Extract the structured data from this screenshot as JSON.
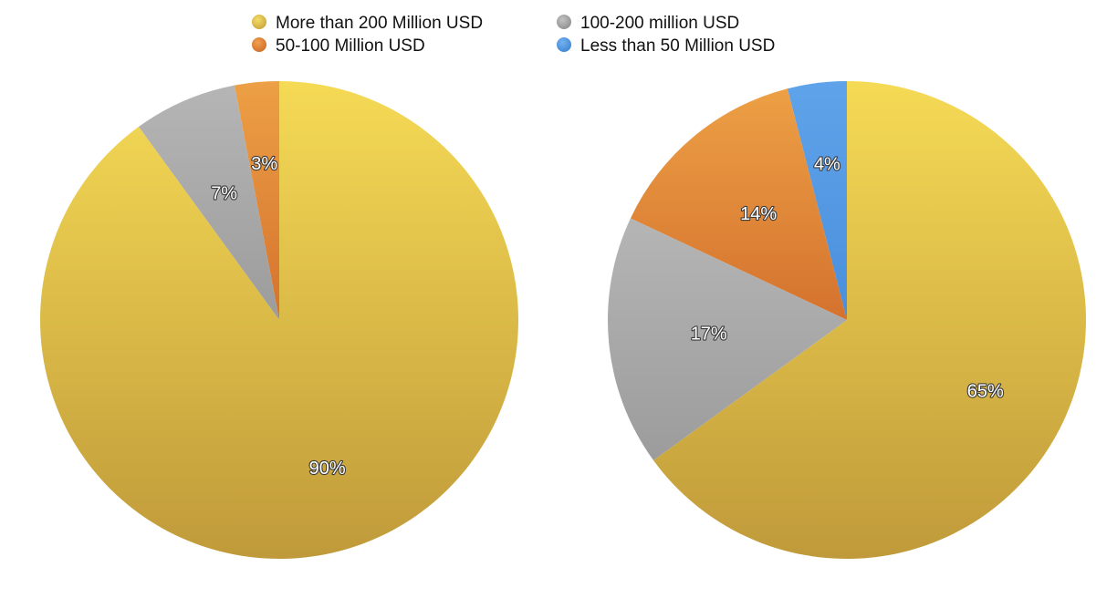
{
  "chart_data": {
    "type": "pie",
    "legend": {
      "placement": "top",
      "entries": [
        {
          "label": "More than 200 Million USD",
          "color": "#e3c54a"
        },
        {
          "label": "100-200 million USD",
          "color": "#a6a6a6"
        },
        {
          "label": "50-100 Million USD",
          "color": "#e08a3a"
        },
        {
          "label": "Less than 50 Million USD",
          "color": "#4f97e2"
        }
      ]
    },
    "pies": [
      {
        "slices": [
          {
            "category": "More than 200 Million USD",
            "value": 90,
            "label": "90%"
          },
          {
            "category": "100-200 million USD",
            "value": 7,
            "label": "7%"
          },
          {
            "category": "50-100 Million USD",
            "value": 3,
            "label": "3%"
          }
        ]
      },
      {
        "slices": [
          {
            "category": "More than 200 Million USD",
            "value": 65,
            "label": "65%"
          },
          {
            "category": "100-200 million USD",
            "value": 17,
            "label": "17%"
          },
          {
            "category": "50-100 Million USD",
            "value": 14,
            "label": "14%"
          },
          {
            "category": "Less than 50 Million USD",
            "value": 4,
            "label": "4%"
          }
        ]
      }
    ]
  }
}
